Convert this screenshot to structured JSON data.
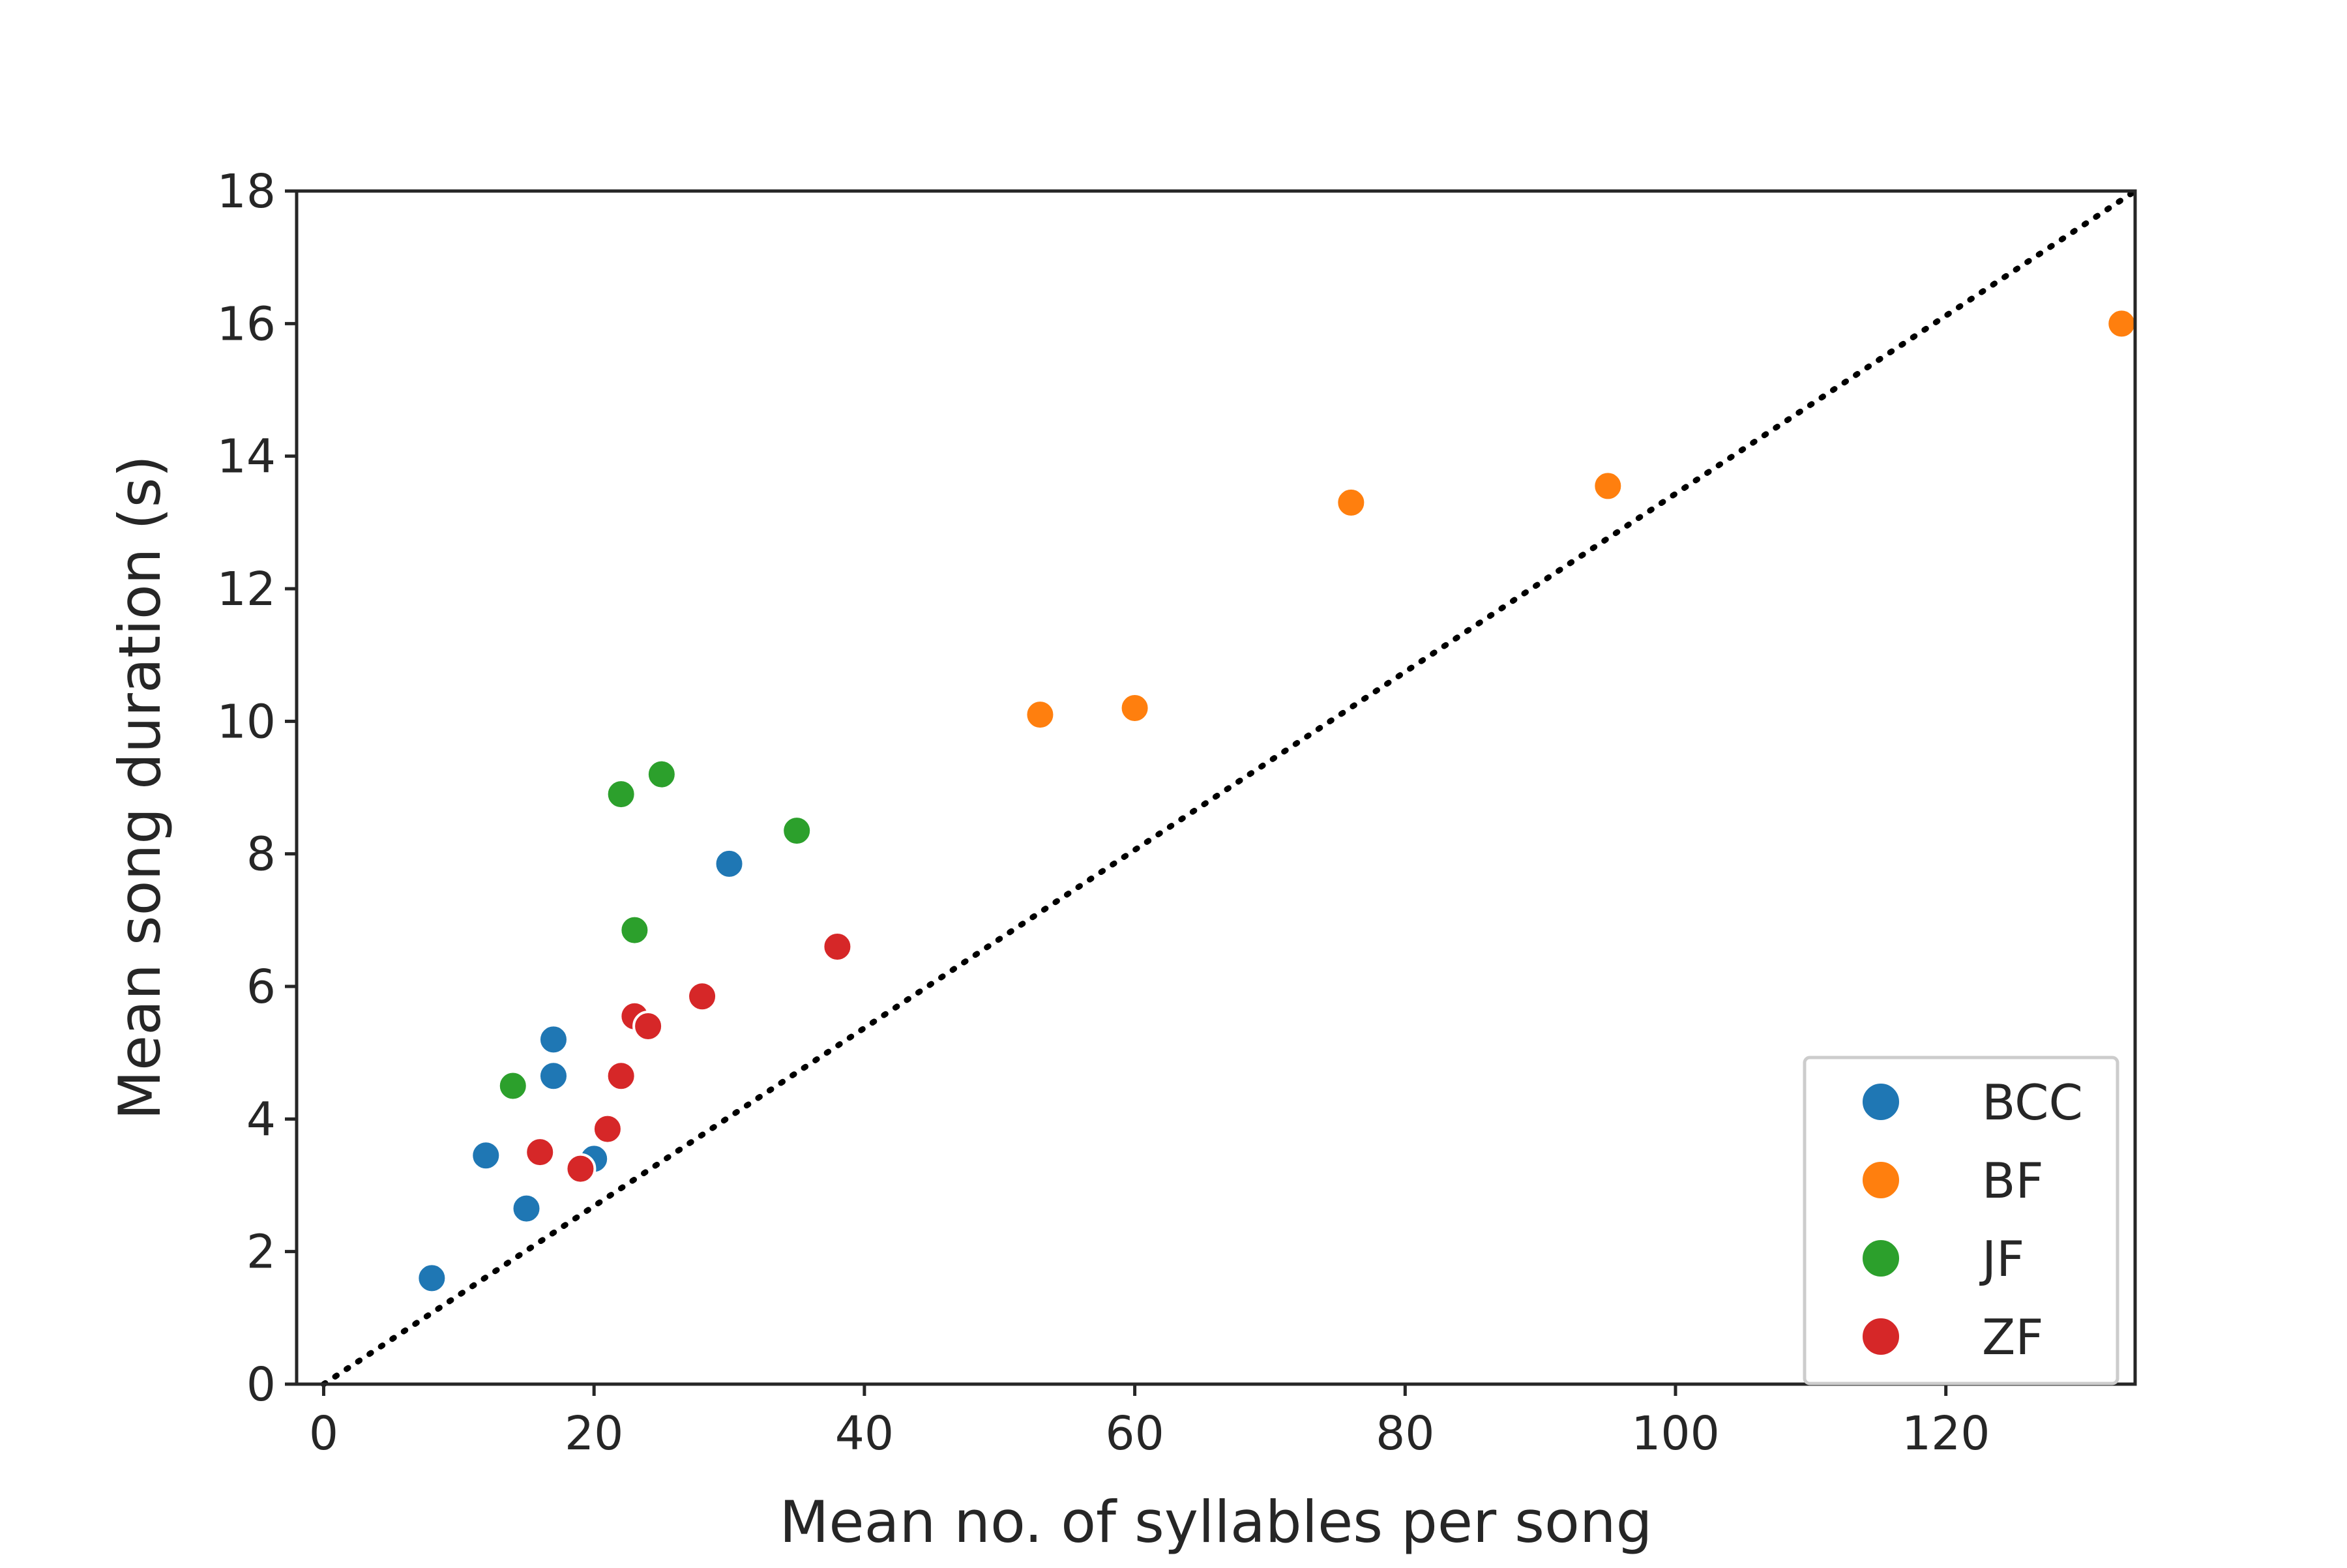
{
  "chart_data": {
    "type": "scatter",
    "title": "",
    "xlabel": "Mean no. of syllables per song",
    "ylabel": "Mean song duration (s)",
    "xlim": [
      -2,
      134
    ],
    "ylim": [
      0,
      18
    ],
    "xticks": [
      0,
      20,
      40,
      60,
      80,
      100,
      120
    ],
    "yticks": [
      0,
      2,
      4,
      6,
      8,
      10,
      12,
      14,
      16,
      18
    ],
    "grid": false,
    "legend_position": "lower-right",
    "reference_line": {
      "style": "dotted",
      "from": [
        0,
        0
      ],
      "to": [
        134,
        18
      ]
    },
    "series": [
      {
        "name": "BCC",
        "color": "#1f77b4",
        "points": [
          {
            "x": 8,
            "y": 1.6
          },
          {
            "x": 12,
            "y": 3.45
          },
          {
            "x": 15,
            "y": 2.65
          },
          {
            "x": 17,
            "y": 4.65
          },
          {
            "x": 17,
            "y": 5.2
          },
          {
            "x": 19,
            "y": 3.25
          },
          {
            "x": 20,
            "y": 3.4
          },
          {
            "x": 30,
            "y": 7.85
          }
        ]
      },
      {
        "name": "BF",
        "color": "#ff7f0e",
        "points": [
          {
            "x": 53,
            "y": 10.1
          },
          {
            "x": 60,
            "y": 10.2
          },
          {
            "x": 76,
            "y": 13.3
          },
          {
            "x": 95,
            "y": 13.55
          },
          {
            "x": 133,
            "y": 16.0
          }
        ]
      },
      {
        "name": "JF",
        "color": "#2ca02c",
        "points": [
          {
            "x": 14,
            "y": 4.5
          },
          {
            "x": 22,
            "y": 8.9
          },
          {
            "x": 23,
            "y": 6.85
          },
          {
            "x": 25,
            "y": 9.2
          },
          {
            "x": 35,
            "y": 8.35
          }
        ]
      },
      {
        "name": "ZF",
        "color": "#d62728",
        "points": [
          {
            "x": 16,
            "y": 3.5
          },
          {
            "x": 19,
            "y": 3.25
          },
          {
            "x": 21,
            "y": 3.85
          },
          {
            "x": 22,
            "y": 4.65
          },
          {
            "x": 23,
            "y": 5.55
          },
          {
            "x": 24,
            "y": 5.4
          },
          {
            "x": 28,
            "y": 5.85
          },
          {
            "x": 38,
            "y": 6.6
          }
        ]
      }
    ]
  }
}
